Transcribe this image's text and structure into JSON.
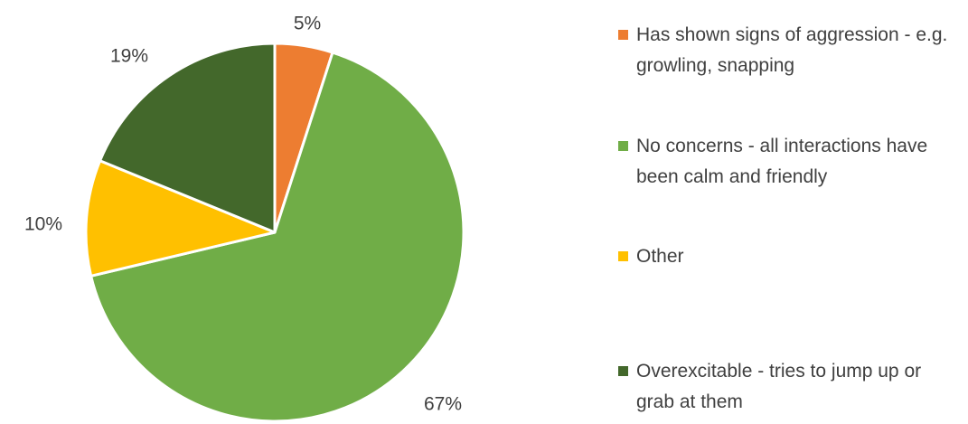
{
  "chart_data": {
    "type": "pie",
    "categories": [
      "Has shown signs of aggression - e.g. growling, snapping",
      "No concerns - all interactions have been calm and friendly",
      "Other",
      "Overexcitable - tries to jump up or grab at them"
    ],
    "values": [
      5,
      67,
      10,
      19
    ],
    "data_labels": [
      "5%",
      "67%",
      "10%",
      "19%"
    ],
    "colors": [
      "#ED7D31",
      "#70AD47",
      "#FFC000",
      "#43682B"
    ],
    "start_angle": "12 o'clock",
    "direction": "clockwise",
    "legend_position": "right",
    "title": ""
  }
}
